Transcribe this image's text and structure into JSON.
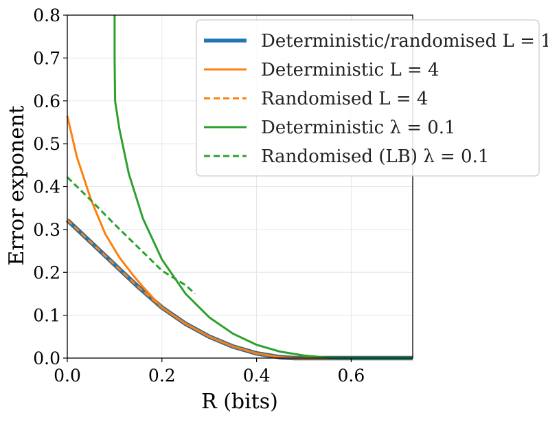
{
  "chart_data": {
    "type": "line",
    "title": "",
    "xlabel": "R (bits)",
    "ylabel": "Error exponent",
    "xlim": [
      0.0,
      0.73
    ],
    "ylim": [
      0.0,
      0.8
    ],
    "xticks": [
      "0.0",
      "0.2",
      "0.4",
      "0.6"
    ],
    "xtick_values": [
      0.0,
      0.2,
      0.4,
      0.6
    ],
    "yticks": [
      "0.0",
      "0.1",
      "0.2",
      "0.3",
      "0.4",
      "0.5",
      "0.6",
      "0.7",
      "0.8"
    ],
    "ytick_values": [
      0.0,
      0.1,
      0.2,
      0.3,
      0.4,
      0.5,
      0.6,
      0.7,
      0.8
    ],
    "grid": true,
    "legend_position": "top-right",
    "series": [
      {
        "name": "Deterministic/randomised L = 1",
        "color": "#1f77b4",
        "style": "solid",
        "emphasis": "thick",
        "x": [
          0.0,
          0.05,
          0.1,
          0.15,
          0.2,
          0.25,
          0.3,
          0.35,
          0.4,
          0.45,
          0.48,
          0.73
        ],
        "y": [
          0.322,
          0.27,
          0.218,
          0.166,
          0.118,
          0.08,
          0.05,
          0.027,
          0.011,
          0.002,
          0.0,
          0.0
        ]
      },
      {
        "name": "Deterministic L = 4",
        "color": "#ff7f0e",
        "style": "solid",
        "x": [
          0.0,
          0.02,
          0.05,
          0.08,
          0.11,
          0.14,
          0.16,
          0.2,
          0.25,
          0.3,
          0.35,
          0.4,
          0.45,
          0.48,
          0.73
        ],
        "y": [
          0.565,
          0.47,
          0.37,
          0.29,
          0.235,
          0.192,
          0.166,
          0.118,
          0.08,
          0.05,
          0.027,
          0.011,
          0.002,
          0.0,
          0.0
        ]
      },
      {
        "name": "Randomised L = 4",
        "color": "#ff7f0e",
        "style": "dashed",
        "x": [
          0.0,
          0.05,
          0.1,
          0.15,
          0.2,
          0.25,
          0.3,
          0.35,
          0.4,
          0.45,
          0.48,
          0.73
        ],
        "y": [
          0.322,
          0.27,
          0.218,
          0.166,
          0.118,
          0.08,
          0.05,
          0.027,
          0.011,
          0.002,
          0.0,
          0.0
        ]
      },
      {
        "name": "Deterministic λ = 0.1",
        "color": "#2ca02c",
        "style": "solid",
        "x": [
          0.1,
          0.1,
          0.101,
          0.11,
          0.13,
          0.16,
          0.2,
          0.25,
          0.3,
          0.35,
          0.4,
          0.45,
          0.5,
          0.55,
          0.58,
          0.73
        ],
        "y": [
          0.8,
          0.7,
          0.6,
          0.535,
          0.43,
          0.325,
          0.23,
          0.15,
          0.095,
          0.057,
          0.031,
          0.015,
          0.006,
          0.001,
          0.0,
          0.0
        ]
      },
      {
        "name": "Randomised (LB) λ = 0.1",
        "color": "#2ca02c",
        "style": "dashed",
        "x": [
          0.0,
          0.05,
          0.1,
          0.15,
          0.2,
          0.25,
          0.27
        ],
        "y": [
          0.422,
          0.368,
          0.312,
          0.258,
          0.204,
          0.17,
          0.15
        ]
      }
    ]
  }
}
